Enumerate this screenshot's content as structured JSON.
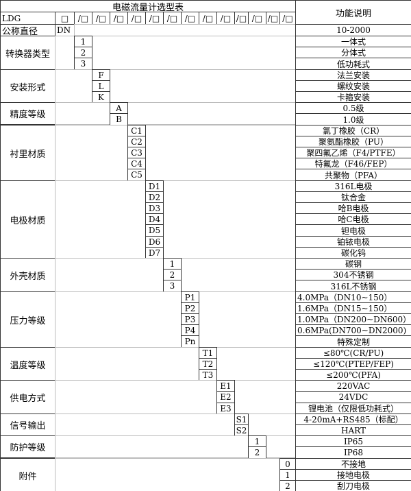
{
  "title": "电磁流量计选型表",
  "function_header": "功能说明",
  "model_prefix": "LDG",
  "header_slots": [
    "□",
    "/□",
    "/□",
    "/□",
    "/□",
    "/□",
    "/□",
    "/□",
    "/□",
    "/□",
    "/□",
    "/□",
    "/□",
    "/□"
  ],
  "nominal": {
    "label": "公称直径",
    "code": "DN",
    "desc": "10-2000"
  },
  "groups": [
    {
      "label": "转换器类型",
      "options": [
        {
          "code": "1",
          "desc": "一体式"
        },
        {
          "code": "2",
          "desc": "分体式"
        },
        {
          "code": "3",
          "desc": "低功耗式"
        }
      ]
    },
    {
      "label": "安装形式",
      "options": [
        {
          "code": "F",
          "desc": "法兰安装"
        },
        {
          "code": "L",
          "desc": "螺纹安装"
        },
        {
          "code": "K",
          "desc": "卡箍安装"
        }
      ]
    },
    {
      "label": "精度等级",
      "options": [
        {
          "code": "A",
          "desc": "0.5级"
        },
        {
          "code": "B",
          "desc": "1.0级"
        }
      ]
    },
    {
      "label": "衬里材质",
      "options": [
        {
          "code": "C1",
          "desc": "氯丁橡胶（CR）"
        },
        {
          "code": "C2",
          "desc": "聚氨酯橡胶（PU）"
        },
        {
          "code": "C3",
          "desc": "聚四氟乙烯（F4/PTFE）"
        },
        {
          "code": "C4",
          "desc": "特氟龙（F46/FEP）"
        },
        {
          "code": "C5",
          "desc": "共聚物（PFA）"
        }
      ]
    },
    {
      "label": "电极材质",
      "options": [
        {
          "code": "D1",
          "desc": "316L电极"
        },
        {
          "code": "D2",
          "desc": "钛合金"
        },
        {
          "code": "D3",
          "desc": "哈B电极"
        },
        {
          "code": "D4",
          "desc": "哈C电极"
        },
        {
          "code": "D5",
          "desc": "钽电极"
        },
        {
          "code": "D6",
          "desc": "铂铱电极"
        },
        {
          "code": "D7",
          "desc": "碳化钨"
        }
      ]
    },
    {
      "label": "外壳材质",
      "options": [
        {
          "code": "1",
          "desc": "碳钢"
        },
        {
          "code": "2",
          "desc": "304不锈钢"
        },
        {
          "code": "3",
          "desc": "316L不锈钢"
        }
      ]
    },
    {
      "label": "压力等级",
      "options": [
        {
          "code": "P1",
          "desc": "4.0MPa（DN10~150）"
        },
        {
          "code": "P2",
          "desc": "1.6MPa（DN15~150）"
        },
        {
          "code": "P3",
          "desc": "1.0MPa（DN200~DN600）"
        },
        {
          "code": "P4",
          "desc": "0.6MPa(DN700~DN2000)"
        },
        {
          "code": "Pn",
          "desc": "特殊定制"
        }
      ]
    },
    {
      "label": "温度等级",
      "options": [
        {
          "code": "T1",
          "desc": "≤80℃(CR/PU)"
        },
        {
          "code": "T2",
          "desc": "≤120℃(PTEP/FEP)"
        },
        {
          "code": "T3",
          "desc": "≤200℃(PFA)"
        }
      ]
    },
    {
      "label": "供电方式",
      "options": [
        {
          "code": "E1",
          "desc": "220VAC"
        },
        {
          "code": "E2",
          "desc": "24VDC"
        },
        {
          "code": "E3",
          "desc": "锂电池（仅限低功耗式）"
        }
      ]
    },
    {
      "label": "信号输出",
      "options": [
        {
          "code": "S1",
          "desc": "4-20mA+RS485（标配）"
        },
        {
          "code": "S2",
          "desc": "HART"
        }
      ]
    },
    {
      "label": "防护等级",
      "options": [
        {
          "code": "1",
          "desc": "IP65"
        },
        {
          "code": "2",
          "desc": "IP68"
        }
      ]
    },
    {
      "label": "附件",
      "options": [
        {
          "code": "0",
          "desc": "不接地"
        },
        {
          "code": "1",
          "desc": "接地电极"
        },
        {
          "code": "2",
          "desc": "刮刀电极"
        }
      ]
    }
  ]
}
